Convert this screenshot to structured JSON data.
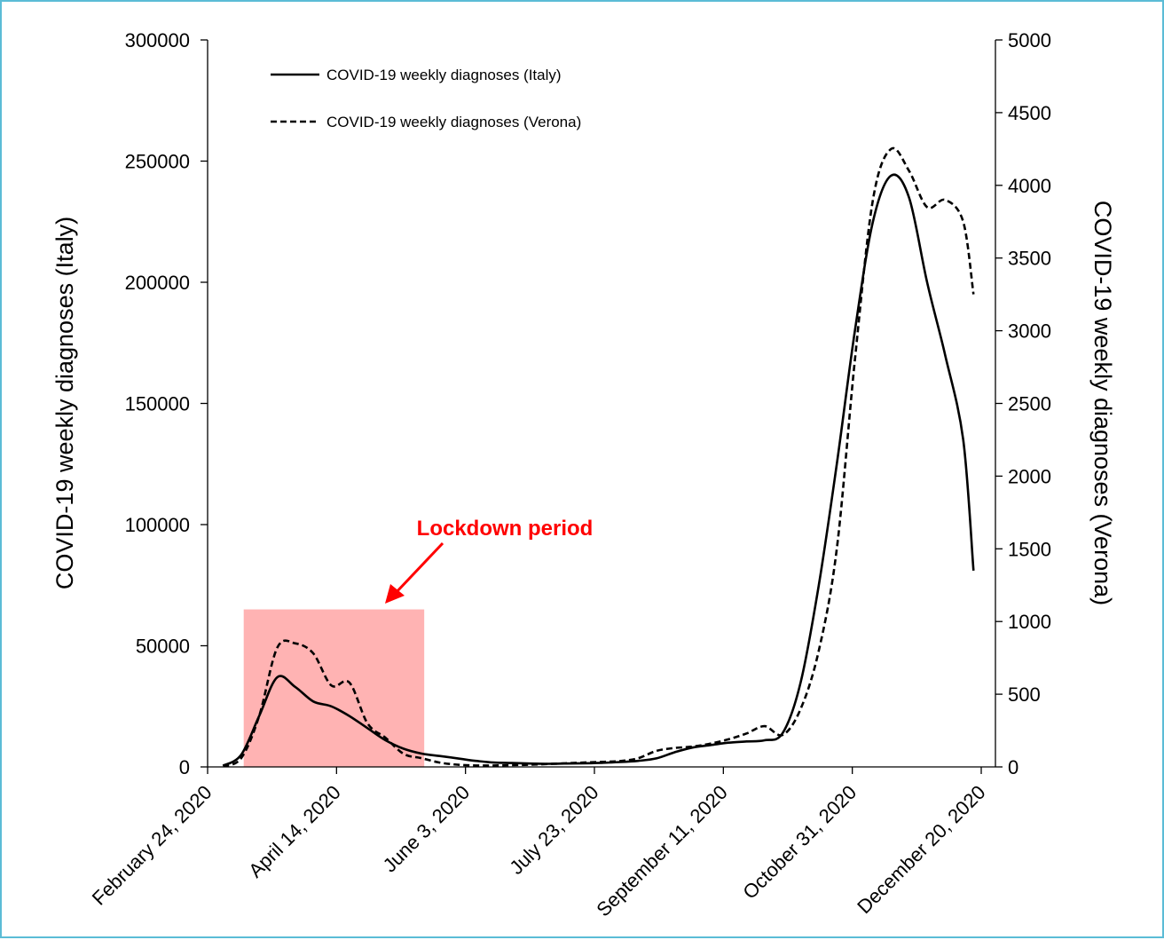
{
  "chart_data": {
    "type": "line",
    "title": "",
    "xlabel": "",
    "ylabel_left": "COVID-19 weekly diagnoses (Italy)",
    "ylabel_right": "COVID-19 weekly diagnoses (Verona)",
    "x_ticks": [
      "February 24, 2020",
      "April 14, 2020",
      "June 3, 2020",
      "July 23, 2020",
      "September 11, 2020",
      "October 31, 2020",
      "December 20, 2020"
    ],
    "x_range": [
      "2020-02-24",
      "2020-12-20"
    ],
    "ylim_left": [
      0,
      300000
    ],
    "yticks_left": [
      0,
      50000,
      100000,
      150000,
      200000,
      250000,
      300000
    ],
    "ylim_right": [
      0,
      5000
    ],
    "yticks_right": [
      0,
      500,
      1000,
      1500,
      2000,
      2500,
      3000,
      3500,
      4000,
      4500,
      5000
    ],
    "grid": false,
    "legend_position": "top-left",
    "series": [
      {
        "name": "COVID-19 weekly diagnoses (Italy)",
        "axis": "left",
        "line_style": "solid",
        "color": "#000000",
        "points": [
          [
            "2020-03-01",
            500
          ],
          [
            "2020-03-08",
            5000
          ],
          [
            "2020-03-15",
            21000
          ],
          [
            "2020-03-22",
            37000
          ],
          [
            "2020-03-29",
            33000
          ],
          [
            "2020-04-05",
            27000
          ],
          [
            "2020-04-12",
            25000
          ],
          [
            "2020-04-19",
            21000
          ],
          [
            "2020-04-26",
            16000
          ],
          [
            "2020-05-03",
            11000
          ],
          [
            "2020-05-10",
            7500
          ],
          [
            "2020-05-17",
            5500
          ],
          [
            "2020-05-24",
            4500
          ],
          [
            "2020-05-31",
            3500
          ],
          [
            "2020-06-07",
            2500
          ],
          [
            "2020-06-14",
            1800
          ],
          [
            "2020-06-21",
            1600
          ],
          [
            "2020-06-28",
            1400
          ],
          [
            "2020-07-05",
            1300
          ],
          [
            "2020-07-12",
            1400
          ],
          [
            "2020-07-19",
            1500
          ],
          [
            "2020-07-26",
            1700
          ],
          [
            "2020-08-02",
            2000
          ],
          [
            "2020-08-09",
            2500
          ],
          [
            "2020-08-16",
            3500
          ],
          [
            "2020-08-23",
            6000
          ],
          [
            "2020-08-30",
            8000
          ],
          [
            "2020-09-06",
            9000
          ],
          [
            "2020-09-13",
            10000
          ],
          [
            "2020-09-20",
            10500
          ],
          [
            "2020-09-27",
            11000
          ],
          [
            "2020-10-04",
            14000
          ],
          [
            "2020-10-11",
            35000
          ],
          [
            "2020-10-18",
            75000
          ],
          [
            "2020-10-25",
            125000
          ],
          [
            "2020-11-01",
            180000
          ],
          [
            "2020-11-08",
            225000
          ],
          [
            "2020-11-15",
            244000
          ],
          [
            "2020-11-22",
            235000
          ],
          [
            "2020-11-29",
            200000
          ],
          [
            "2020-12-06",
            170000
          ],
          [
            "2020-12-13",
            135000
          ],
          [
            "2020-12-17",
            81000
          ]
        ]
      },
      {
        "name": "COVID-19 weekly diagnoses (Verona)",
        "axis": "right",
        "line_style": "dashed",
        "color": "#000000",
        "points": [
          [
            "2020-03-01",
            5
          ],
          [
            "2020-03-08",
            60
          ],
          [
            "2020-03-15",
            350
          ],
          [
            "2020-03-22",
            820
          ],
          [
            "2020-03-29",
            850
          ],
          [
            "2020-04-05",
            780
          ],
          [
            "2020-04-12",
            560
          ],
          [
            "2020-04-19",
            580
          ],
          [
            "2020-04-26",
            300
          ],
          [
            "2020-05-03",
            200
          ],
          [
            "2020-05-10",
            90
          ],
          [
            "2020-05-17",
            60
          ],
          [
            "2020-05-24",
            30
          ],
          [
            "2020-05-31",
            15
          ],
          [
            "2020-06-07",
            10
          ],
          [
            "2020-06-14",
            10
          ],
          [
            "2020-06-21",
            12
          ],
          [
            "2020-06-28",
            15
          ],
          [
            "2020-07-05",
            20
          ],
          [
            "2020-07-12",
            25
          ],
          [
            "2020-07-19",
            30
          ],
          [
            "2020-07-26",
            35
          ],
          [
            "2020-08-02",
            40
          ],
          [
            "2020-08-09",
            60
          ],
          [
            "2020-08-16",
            110
          ],
          [
            "2020-08-23",
            130
          ],
          [
            "2020-08-30",
            140
          ],
          [
            "2020-09-06",
            160
          ],
          [
            "2020-09-13",
            190
          ],
          [
            "2020-09-20",
            230
          ],
          [
            "2020-09-27",
            280
          ],
          [
            "2020-10-04",
            220
          ],
          [
            "2020-10-11",
            400
          ],
          [
            "2020-10-18",
            800
          ],
          [
            "2020-10-25",
            1500
          ],
          [
            "2020-11-01",
            2800
          ],
          [
            "2020-11-08",
            3900
          ],
          [
            "2020-11-15",
            4250
          ],
          [
            "2020-11-22",
            4100
          ],
          [
            "2020-11-29",
            3850
          ],
          [
            "2020-12-06",
            3900
          ],
          [
            "2020-12-13",
            3750
          ],
          [
            "2020-12-17",
            3250
          ]
        ]
      }
    ],
    "annotations": [
      {
        "text": "Lockdown period",
        "color": "#ff0000",
        "shaded_region": {
          "x_start": "2020-03-09",
          "x_end": "2020-05-18",
          "y_left_top": 65000,
          "fill": "#ffb3b3"
        }
      }
    ]
  }
}
